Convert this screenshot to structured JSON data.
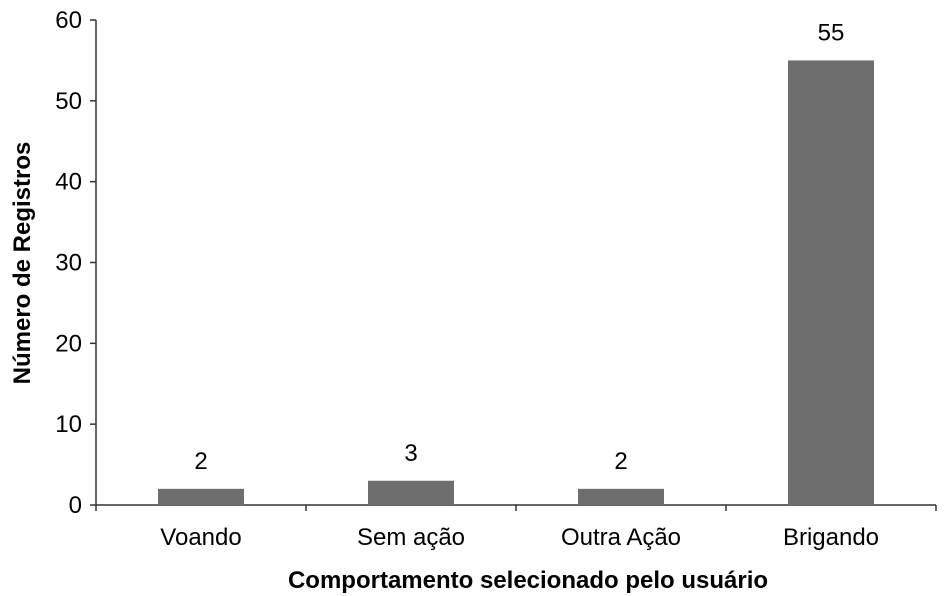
{
  "chart_data": {
    "type": "bar",
    "categories": [
      "Voando",
      "Sem ação",
      "Outra Ação",
      "Brigando"
    ],
    "values": [
      2,
      3,
      2,
      55
    ],
    "data_labels": [
      "2",
      "3",
      "2",
      "55"
    ],
    "xlabel": "Comportamento selecionado pelo usuário",
    "ylabel": "Número de Registros",
    "ylim": [
      0,
      60
    ],
    "yticks": [
      0,
      10,
      20,
      30,
      40,
      50,
      60
    ],
    "grid": false,
    "legend": "none",
    "bar_color": "#6e6e6e"
  }
}
